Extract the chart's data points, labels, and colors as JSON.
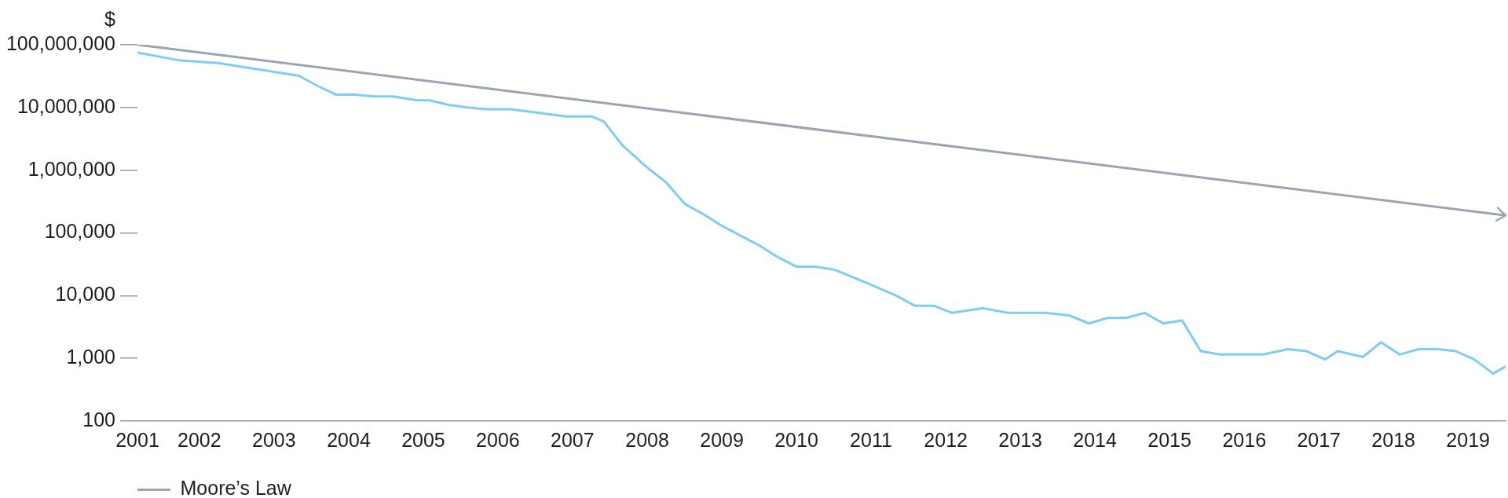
{
  "chart_data": {
    "type": "line",
    "ylabel": "$",
    "log": true,
    "grid": false,
    "legend": "bottom left",
    "line_style": "solid",
    "xlim": [
      "2001-09",
      "2020-01"
    ],
    "xticks": [
      {
        "value": "2001-09",
        "label": "2001"
      },
      {
        "value": "2002-07",
        "label": "2002"
      },
      {
        "value": "2003-07",
        "label": "2003"
      },
      {
        "value": "2004-07",
        "label": "2004"
      },
      {
        "value": "2005-07",
        "label": "2005"
      },
      {
        "value": "2006-07",
        "label": "2006"
      },
      {
        "value": "2007-07",
        "label": "2007"
      },
      {
        "value": "2008-07",
        "label": "2008"
      },
      {
        "value": "2009-07",
        "label": "2009"
      },
      {
        "value": "2010-07",
        "label": "2010"
      },
      {
        "value": "2011-07",
        "label": "2011"
      },
      {
        "value": "2012-07",
        "label": "2012"
      },
      {
        "value": "2013-07",
        "label": "2013"
      },
      {
        "value": "2014-07",
        "label": "2014"
      },
      {
        "value": "2015-07",
        "label": "2015"
      },
      {
        "value": "2016-07",
        "label": "2016"
      },
      {
        "value": "2017-07",
        "label": "2017"
      },
      {
        "value": "2018-07",
        "label": "2018"
      },
      {
        "value": "2019-07",
        "label": "2019"
      }
    ],
    "ylim": [
      100,
      100000000
    ],
    "yticks": [
      {
        "value": 100,
        "label": "100"
      },
      {
        "value": 1000,
        "label": "1,000"
      },
      {
        "value": 10000,
        "label": "10,000"
      },
      {
        "value": 100000,
        "label": "100,000"
      },
      {
        "value": 1000000,
        "label": "1,000,000"
      },
      {
        "value": 10000000,
        "label": "10,000,000"
      },
      {
        "value": 100000000,
        "label": "100,000,000"
      }
    ],
    "series": [
      {
        "color": "#7fcdf2",
        "x": [
          "2001-09",
          "2002-04",
          "2002-10",
          "2003-11",
          "2004-02",
          "2004-05",
          "2004-08",
          "2004-11",
          "2005-02",
          "2005-06",
          "2005-08",
          "2005-11",
          "2006-02",
          "2006-05",
          "2006-09",
          "2007-06",
          "2007-10",
          "2007-12",
          "2008-03",
          "2008-07",
          "2008-10",
          "2009-01",
          "2009-04",
          "2009-07",
          "2009-10",
          "2010-01",
          "2010-04",
          "2010-07",
          "2010-10",
          "2011-01",
          "2011-05",
          "2011-07",
          "2011-11",
          "2012-02",
          "2012-05",
          "2012-08",
          "2013-01",
          "2013-05",
          "2013-11",
          "2014-03",
          "2014-06",
          "2014-09",
          "2014-12",
          "2015-03",
          "2015-06",
          "2015-09",
          "2015-12",
          "2016-03",
          "2016-10",
          "2017-02",
          "2017-05",
          "2017-08",
          "2017-10",
          "2018-02",
          "2018-05",
          "2018-08",
          "2018-11",
          "2019-02",
          "2019-05",
          "2019-08",
          "2019-11",
          "2020-01"
        ],
        "values": [
          75000000,
          56000000,
          51000000,
          32000000,
          22000000,
          16000000,
          16000000,
          15000000,
          15000000,
          13000000,
          13000000,
          11000000,
          10000000,
          9400000,
          9400000,
          7200000,
          7200000,
          6000000,
          2500000,
          1100000,
          640000,
          290000,
          200000,
          130000,
          90000,
          63000,
          41000,
          29000,
          29000,
          26000,
          18000,
          15000,
          10000,
          6900,
          6900,
          5300,
          6300,
          5300,
          5300,
          4800,
          3600,
          4400,
          4400,
          5300,
          3600,
          4000,
          1300,
          1150,
          1150,
          1400,
          1300,
          960,
          1300,
          1050,
          1800,
          1150,
          1400,
          1400,
          1300,
          960,
          570,
          740
        ]
      },
      {
        "name": "Moore’s Law",
        "color": "#9ba5b2",
        "x": [
          "2001-09",
          "2020-01"
        ],
        "values": [
          100000000,
          190000
        ]
      }
    ]
  }
}
